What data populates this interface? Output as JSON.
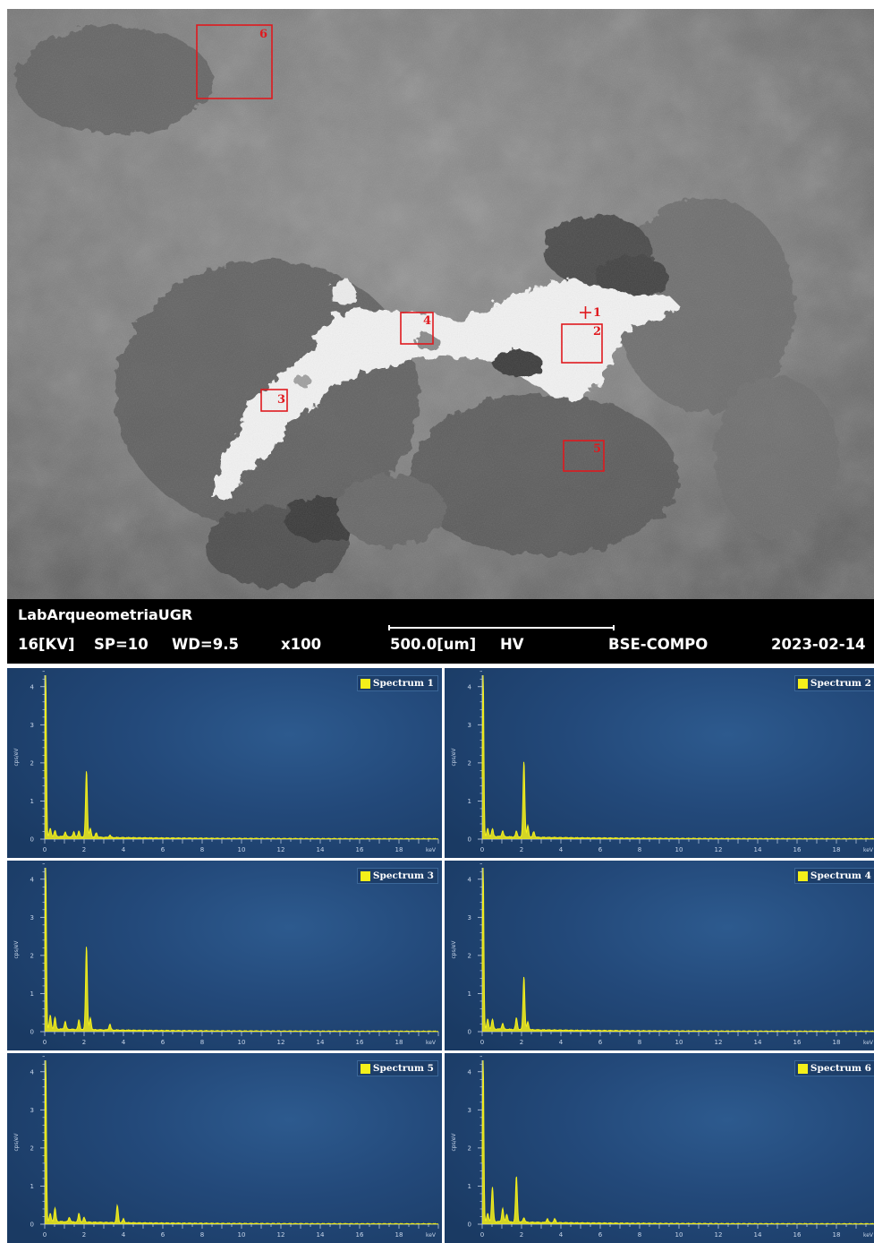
{
  "micrograph": {
    "regions": [
      {
        "id": "1",
        "label": "1",
        "shape": "cross"
      },
      {
        "id": "2",
        "label": "2",
        "shape": "box"
      },
      {
        "id": "3",
        "label": "3",
        "shape": "box"
      },
      {
        "id": "4",
        "label": "4",
        "shape": "box"
      },
      {
        "id": "5",
        "label": "5",
        "shape": "box"
      },
      {
        "id": "6",
        "label": "6",
        "shape": "box"
      }
    ],
    "marker_color": "#e0191e"
  },
  "info_bar": {
    "lab": "LabArqueometriaUGR",
    "voltage": "16[KV]",
    "spot": "SP=10",
    "wd": "WD=9.5",
    "magnification": "x100",
    "scale": "500.0[um]",
    "vacuum": "HV",
    "detector": "BSE-COMPO",
    "date": "2023-02-14"
  },
  "chart_data": [
    {
      "type": "line",
      "title": "",
      "legend": "Spectrum 1",
      "xlabel": "keV",
      "ylabel": "cps/eV",
      "xlim": [
        0,
        20
      ],
      "ylim": [
        0,
        4.3
      ],
      "x_ticks": [
        0,
        2,
        4,
        6,
        8,
        10,
        12,
        14,
        16,
        18
      ],
      "y_ticks": [
        0,
        1,
        2,
        3,
        4
      ],
      "peaks": [
        {
          "x": 0.05,
          "y": 4.3
        },
        {
          "x": 0.28,
          "y": 0.2
        },
        {
          "x": 0.52,
          "y": 0.15
        },
        {
          "x": 1.04,
          "y": 0.12
        },
        {
          "x": 1.48,
          "y": 0.13
        },
        {
          "x": 1.74,
          "y": 0.15
        },
        {
          "x": 2.12,
          "y": 1.75
        },
        {
          "x": 2.32,
          "y": 0.22
        },
        {
          "x": 2.62,
          "y": 0.12
        },
        {
          "x": 3.31,
          "y": 0.06
        }
      ],
      "line_color": "#f4f01a"
    },
    {
      "type": "line",
      "title": "",
      "legend": "Spectrum 2",
      "xlabel": "keV",
      "ylabel": "cps/eV",
      "xlim": [
        0,
        20
      ],
      "ylim": [
        0,
        4.3
      ],
      "x_ticks": [
        0,
        2,
        4,
        6,
        8,
        10,
        12,
        14,
        16,
        18
      ],
      "y_ticks": [
        0,
        1,
        2,
        3,
        4
      ],
      "peaks": [
        {
          "x": 0.05,
          "y": 4.3
        },
        {
          "x": 0.28,
          "y": 0.2
        },
        {
          "x": 0.52,
          "y": 0.2
        },
        {
          "x": 1.04,
          "y": 0.15
        },
        {
          "x": 1.74,
          "y": 0.15
        },
        {
          "x": 2.12,
          "y": 2.0
        },
        {
          "x": 2.32,
          "y": 0.3
        },
        {
          "x": 2.62,
          "y": 0.15
        }
      ],
      "line_color": "#f4f01a"
    },
    {
      "type": "line",
      "title": "",
      "legend": "Spectrum 3",
      "xlabel": "keV",
      "ylabel": "cps/eV",
      "xlim": [
        0,
        20
      ],
      "ylim": [
        0,
        4.3
      ],
      "x_ticks": [
        0,
        2,
        4,
        6,
        8,
        10,
        12,
        14,
        16,
        18
      ],
      "y_ticks": [
        0,
        1,
        2,
        3,
        4
      ],
      "peaks": [
        {
          "x": 0.05,
          "y": 4.3
        },
        {
          "x": 0.28,
          "y": 0.35
        },
        {
          "x": 0.52,
          "y": 0.3
        },
        {
          "x": 1.04,
          "y": 0.2
        },
        {
          "x": 1.74,
          "y": 0.25
        },
        {
          "x": 2.12,
          "y": 2.2
        },
        {
          "x": 2.32,
          "y": 0.3
        },
        {
          "x": 3.31,
          "y": 0.15
        }
      ],
      "line_color": "#f4f01a"
    },
    {
      "type": "line",
      "title": "",
      "legend": "Spectrum 4",
      "xlabel": "keV",
      "ylabel": "cps/eV",
      "xlim": [
        0,
        20
      ],
      "ylim": [
        0,
        4.3
      ],
      "x_ticks": [
        0,
        2,
        4,
        6,
        8,
        10,
        12,
        14,
        16,
        18
      ],
      "y_ticks": [
        0,
        1,
        2,
        3,
        4
      ],
      "peaks": [
        {
          "x": 0.05,
          "y": 4.3
        },
        {
          "x": 0.28,
          "y": 0.25
        },
        {
          "x": 0.52,
          "y": 0.25
        },
        {
          "x": 1.04,
          "y": 0.15
        },
        {
          "x": 1.74,
          "y": 0.3
        },
        {
          "x": 2.12,
          "y": 1.4
        },
        {
          "x": 2.32,
          "y": 0.2
        }
      ],
      "line_color": "#f4f01a"
    },
    {
      "type": "line",
      "title": "",
      "legend": "Spectrum 5",
      "xlabel": "keV",
      "ylabel": "cps/eV",
      "xlim": [
        0,
        20
      ],
      "ylim": [
        0,
        4.3
      ],
      "x_ticks": [
        0,
        2,
        4,
        6,
        8,
        10,
        12,
        14,
        16,
        18
      ],
      "y_ticks": [
        0,
        1,
        2,
        3,
        4
      ],
      "peaks": [
        {
          "x": 0.05,
          "y": 4.3
        },
        {
          "x": 0.28,
          "y": 0.2
        },
        {
          "x": 0.52,
          "y": 0.35
        },
        {
          "x": 1.25,
          "y": 0.12
        },
        {
          "x": 1.74,
          "y": 0.22
        },
        {
          "x": 2.0,
          "y": 0.12
        },
        {
          "x": 3.69,
          "y": 0.45
        },
        {
          "x": 4.0,
          "y": 0.1
        }
      ],
      "line_color": "#f4f01a"
    },
    {
      "type": "line",
      "title": "",
      "legend": "Spectrum 6",
      "xlabel": "keV",
      "ylabel": "cps/eV",
      "xlim": [
        0,
        20
      ],
      "ylim": [
        0,
        4.3
      ],
      "x_ticks": [
        0,
        2,
        4,
        6,
        8,
        10,
        12,
        14,
        16,
        18
      ],
      "y_ticks": [
        0,
        1,
        2,
        3,
        4
      ],
      "peaks": [
        {
          "x": 0.05,
          "y": 4.3
        },
        {
          "x": 0.28,
          "y": 0.2
        },
        {
          "x": 0.52,
          "y": 0.9
        },
        {
          "x": 1.04,
          "y": 0.35
        },
        {
          "x": 1.25,
          "y": 0.2
        },
        {
          "x": 1.74,
          "y": 1.2
        },
        {
          "x": 2.12,
          "y": 0.12
        },
        {
          "x": 3.31,
          "y": 0.1
        },
        {
          "x": 3.69,
          "y": 0.1
        }
      ],
      "line_color": "#f4f01a"
    }
  ]
}
